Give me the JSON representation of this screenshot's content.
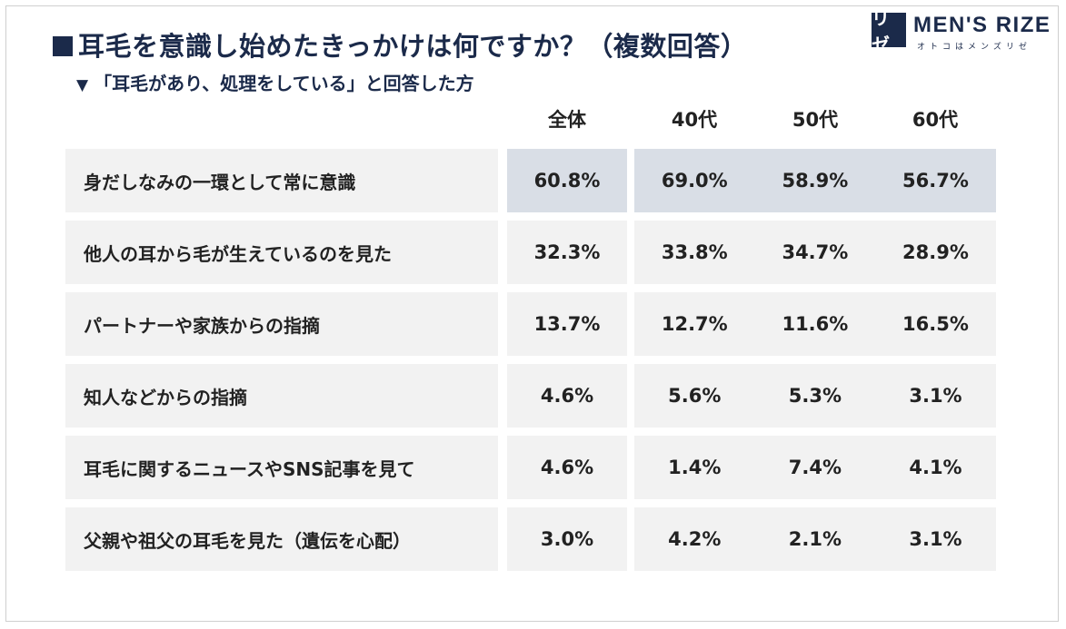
{
  "title": "耳毛を意識し始めたきっかけは何ですか？（複数回答）",
  "subtitle": "「耳毛があり、処理をしている」と回答した方",
  "logo": {
    "mark": "リゼ",
    "name": "MEN'S RIZE",
    "kana": "オトコはメンズリゼ"
  },
  "colors": {
    "header": "#1b2a4a",
    "row_bg": "#f2f2f2",
    "highlight_bg": "#d9dee6"
  },
  "chart_data": {
    "type": "table",
    "columns": [
      "全体",
      "40代",
      "50代",
      "60代"
    ],
    "rows": [
      {
        "label": "身だしなみの一環として常に意識",
        "values": [
          "60.8%",
          "69.0%",
          "58.9%",
          "56.7%"
        ],
        "highlight": true
      },
      {
        "label": "他人の耳から毛が生えているのを見た",
        "values": [
          "32.3%",
          "33.8%",
          "34.7%",
          "28.9%"
        ]
      },
      {
        "label": "パートナーや家族からの指摘",
        "values": [
          "13.7%",
          "12.7%",
          "11.6%",
          "16.5%"
        ]
      },
      {
        "label": "知人などからの指摘",
        "values": [
          "4.6%",
          "5.6%",
          "5.3%",
          "3.1%"
        ]
      },
      {
        "label": "耳毛に関するニュースやSNS記事を見て",
        "values": [
          "4.6%",
          "1.4%",
          "7.4%",
          "4.1%"
        ]
      },
      {
        "label": "父親や祖父の耳毛を見た（遺伝を心配）",
        "values": [
          "3.0%",
          "4.2%",
          "2.1%",
          "3.1%"
        ]
      }
    ]
  }
}
